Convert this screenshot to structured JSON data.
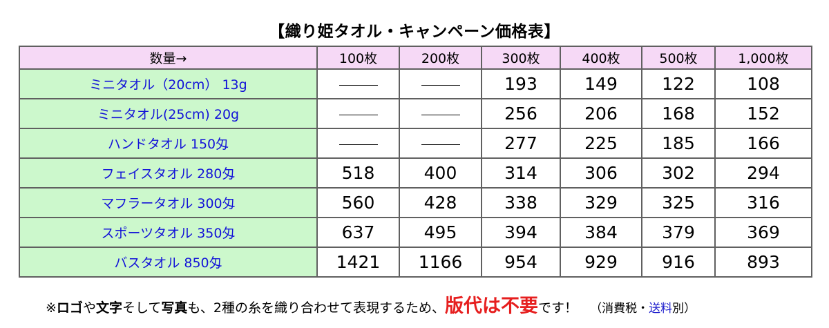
{
  "title": "【織り姫タオル・キャンペーン価格表】",
  "table": {
    "corner": "数量→",
    "columns": [
      "100枚",
      "200枚",
      "300枚",
      "400枚",
      "500枚",
      "1,000枚"
    ],
    "rows": [
      {
        "name": "ミニタオル（20cm） 13g",
        "values": [
          "—",
          "—",
          "193",
          "149",
          "122",
          "108"
        ]
      },
      {
        "name": "ミニタオル(25cm) 20g",
        "values": [
          "—",
          "—",
          "256",
          "206",
          "168",
          "152"
        ]
      },
      {
        "name": "ハンドタオル 150匁",
        "values": [
          "—",
          "—",
          "277",
          "225",
          "185",
          "166"
        ]
      },
      {
        "name": "フェイスタオル 280匁",
        "values": [
          "518",
          "400",
          "314",
          "306",
          "302",
          "294"
        ]
      },
      {
        "name": "マフラータオル 300匁",
        "values": [
          "560",
          "428",
          "338",
          "329",
          "325",
          "316"
        ]
      },
      {
        "name": "スポーツタオル 350匁",
        "values": [
          "637",
          "495",
          "394",
          "384",
          "379",
          "369"
        ]
      },
      {
        "name": "バスタオル 850匁",
        "values": [
          "1421",
          "1166",
          "954",
          "929",
          "916",
          "893"
        ]
      }
    ]
  },
  "footnote": {
    "p1": "※",
    "b1": "ロゴ",
    "p2": "や",
    "b2": "文字",
    "p3": "そして",
    "b3": "写真",
    "p4": "も、2種の糸を織り合わせて表現するため、",
    "red": "版代は不要",
    "p5": "です！",
    "tax_open": "（消費税・",
    "tax_link": "送料",
    "tax_close": "別）"
  },
  "colors": {
    "header_bg": "#f6d9f6",
    "name_bg": "#ccf8cc",
    "name_text": "#1212d8",
    "emphasis_red": "#e61e1e",
    "link_blue": "#1a1acc"
  }
}
